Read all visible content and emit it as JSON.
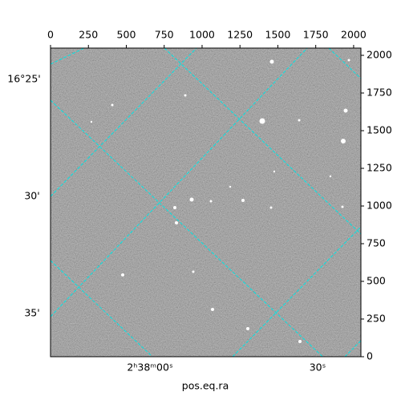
{
  "chart_data": {
    "type": "image",
    "xlim": [
      0,
      2048
    ],
    "ylim": [
      0,
      2048
    ],
    "xticks": [
      0,
      250,
      500,
      750,
      1000,
      1250,
      1500,
      1750,
      2000
    ],
    "yticks": [
      0,
      250,
      500,
      750,
      1000,
      1250,
      1500,
      1750,
      2000
    ],
    "x_label": "pos.eq.ra",
    "dec_labels": [
      "16°25'",
      "30'",
      "35'"
    ],
    "ra_labels": [
      "2ʰ38ᵐ00ˢ",
      "30ˢ"
    ],
    "grid_color": "#00e5e5"
  }
}
